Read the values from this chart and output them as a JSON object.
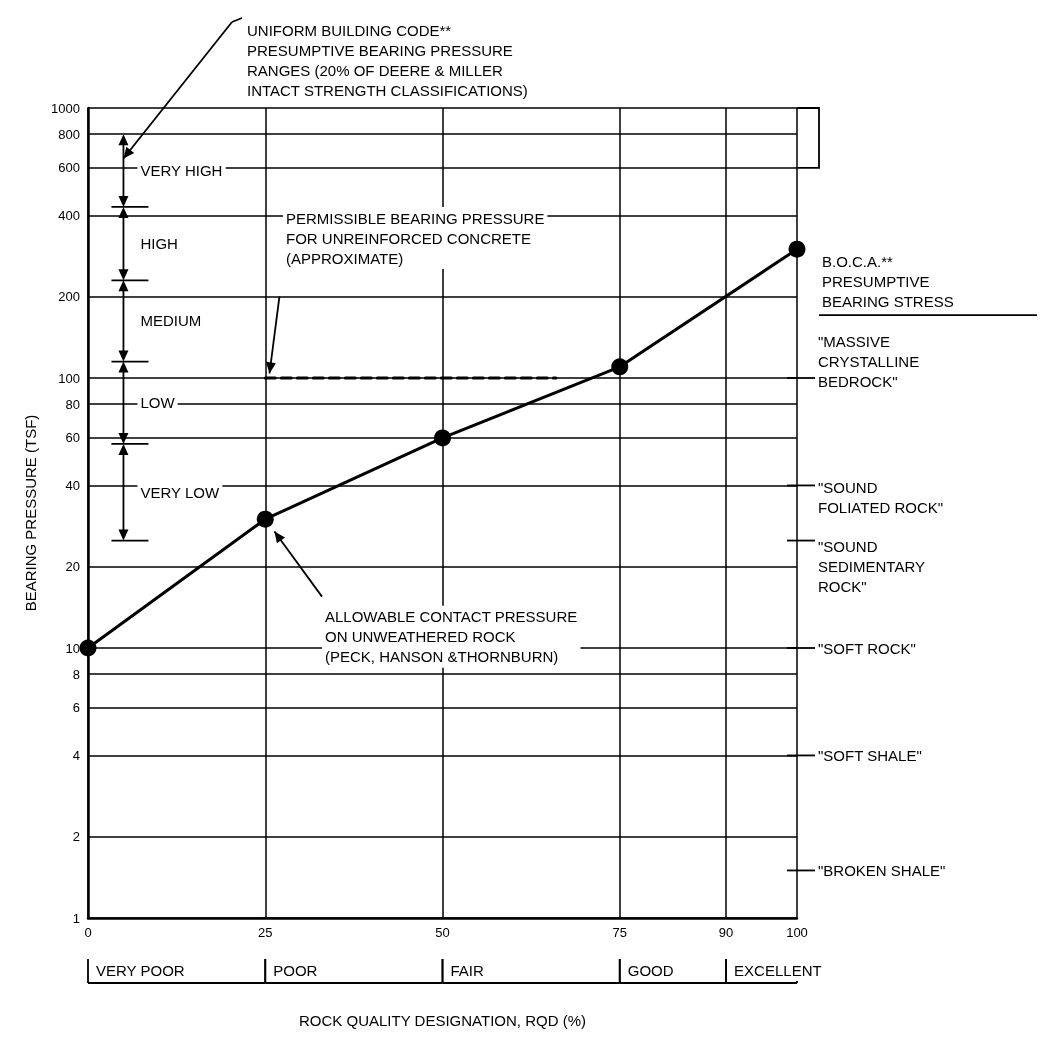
{
  "chart_data": {
    "type": "line",
    "xlabel": "ROCK QUALITY DESIGNATION, RQD (%)",
    "ylabel": "BEARING PRESSURE (TSF)",
    "log": "y",
    "grid": true,
    "marker": "circle",
    "line_style": "solid",
    "x": [
      0,
      25,
      50,
      75,
      100
    ],
    "xlim": [
      0,
      100
    ],
    "xticks": [
      0,
      25,
      50,
      75,
      90,
      100
    ],
    "ylim": [
      1,
      1000
    ],
    "yticks": [
      1,
      2,
      4,
      6,
      8,
      10,
      20,
      40,
      60,
      80,
      100,
      200,
      400,
      600,
      800,
      1000
    ],
    "series": [
      {
        "color": "#000000",
        "values": [
          10,
          30,
          60,
          110,
          300
        ]
      },
      {
        "type": "line",
        "color": "#000000",
        "x": [
          25,
          66
        ],
        "values": [
          100,
          100
        ],
        "marker": "none",
        "line_style": "dashed"
      }
    ],
    "annotations": [
      "UNIFORM BUILDING CODE**\nPRESUMPTIVE BEARING PRESSURE\nRANGES (20% OF DEERE & MILLER\nINTACT STRENGTH CLASSIFICATIONS)",
      "PERMISSIBLE BEARING PRESSURE\nFOR UNREINFORCED CONCRETE\n(APPROXIMATE)",
      "ALLOWABLE CONTACT PRESSURE\nON UNWEATHERED ROCK\n(PECK, HANSON &THORNBURN)",
      "B.O.C.A.**\nPRESUMPTIVE\nBEARING STRESS",
      "\"MASSIVE\nCRYSTALLINE\nBEDROCK\"",
      "\"SOUND\nFOLIATED ROCK\"",
      "\"SOUND\nSEDIMENTARY\nROCK\"",
      "\"SOFT ROCK\"",
      "\"SOFT SHALE\"",
      "\"BROKEN SHALE\"",
      "VERY HIGH",
      "HIGH",
      "MEDIUM",
      "LOW",
      "VERY LOW",
      "VERY POOR",
      "POOR",
      "FAIR",
      "GOOD",
      "EXCELLENT"
    ]
  }
}
